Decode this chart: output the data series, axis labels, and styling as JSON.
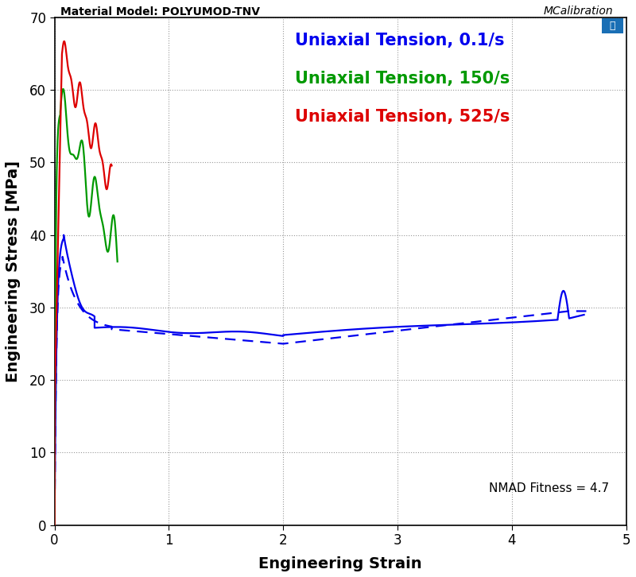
{
  "title": "Material Model: POLYUMOD-TNV",
  "xlabel": "Engineering Strain",
  "ylabel": "Engineering Stress [MPa]",
  "xlim": [
    0,
    5
  ],
  "ylim": [
    0,
    70
  ],
  "xticks": [
    0,
    1,
    2,
    3,
    4,
    5
  ],
  "yticks": [
    0,
    10,
    20,
    30,
    40,
    50,
    60,
    70
  ],
  "legend_labels": [
    "Uniaxial Tension, 0.1/s",
    "Uniaxial Tension, 150/s",
    "Uniaxial Tension, 525/s"
  ],
  "legend_colors": [
    "#0000ee",
    "#009900",
    "#dd0000"
  ],
  "nmad_text": "NMAD Fitness = 4.7",
  "mcalibration_text": "MCalibration",
  "background_color": "#ffffff",
  "grid_color": "#999999",
  "title_fontsize": 10,
  "axis_label_fontsize": 14,
  "legend_fontsize": 15,
  "mcalib_box_color": "#1a6fb5"
}
